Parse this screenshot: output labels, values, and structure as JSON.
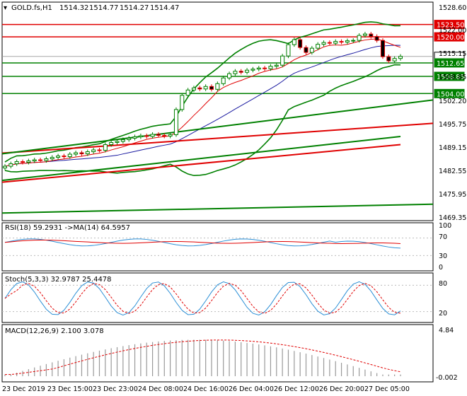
{
  "main_title": "GOLD.fs,H1",
  "ohlc": {
    "open": "1514.32",
    "high": "1514.77",
    "low": "1514.27",
    "close": "1514.47"
  },
  "price_axis": [
    "1528.60",
    "1522.00",
    "1515.15",
    "1508.85",
    "1502.20",
    "1495.75",
    "1489.15",
    "1482.55",
    "1475.95",
    "1469.35"
  ],
  "price_tags": {
    "resistance_1": {
      "label": "1523.50",
      "color": "#e00000"
    },
    "resistance_2": {
      "label": "1520.00",
      "color": "#e00000"
    },
    "current": {
      "label": "1514.47",
      "color": "#ffffff"
    },
    "support_1": {
      "label": "1512.65",
      "color": "#008000"
    },
    "support_2": {
      "label": "1508.85",
      "color": "#008000"
    },
    "support_3": {
      "label": "1504.00",
      "color": "#008000"
    }
  },
  "rsi": {
    "title": "RSI(18) 59.2931 ->MA(14) 64.5957",
    "axis": [
      "100",
      "70",
      "30",
      "0"
    ]
  },
  "stoch": {
    "title": "Stoch(5,3,3) 32.9787 25.4478",
    "axis": [
      "80",
      "20"
    ]
  },
  "macd": {
    "title": "MACD(12,26,9) 2.100 3.078",
    "axis": [
      "4.84",
      "-0.002"
    ]
  },
  "time_axis": [
    "23 Dec 2019",
    "23 Dec 15:00",
    "23 Dec 23:00",
    "24 Dec 08:00",
    "24 Dec 16:00",
    "26 Dec 04:00",
    "26 Dec 12:00",
    "26 Dec 20:00",
    "27 Dec 05:00"
  ],
  "colors": {
    "up": "#008000",
    "down": "#e00000",
    "rsi": "#2b8fd6",
    "signal": "#e00000",
    "grid": "#bbbbbb"
  },
  "chart_data": {
    "type": "candlestick",
    "symbol": "GOLD.fs",
    "timeframe": "H1",
    "close": [
      1483.5,
      1484.2,
      1484.8,
      1484.6,
      1485.0,
      1485.3,
      1485.1,
      1485.6,
      1486.0,
      1486.4,
      1486.2,
      1486.9,
      1487.3,
      1487.0,
      1487.6,
      1488.1,
      1488.0,
      1489.6,
      1490.2,
      1490.5,
      1491.0,
      1491.4,
      1491.8,
      1492.1,
      1491.9,
      1492.5,
      1492.2,
      1492.0,
      1492.4,
      1499.5,
      1503.5,
      1505.0,
      1505.6,
      1505.3,
      1506.0,
      1505.2,
      1506.8,
      1508.4,
      1509.6,
      1510.3,
      1510.0,
      1510.6,
      1510.9,
      1511.2,
      1511.0,
      1511.7,
      1512.0,
      1514.6,
      1517.8,
      1519.2,
      1517.0,
      1515.6,
      1516.8,
      1517.9,
      1518.4,
      1518.2,
      1518.7,
      1518.5,
      1518.9,
      1519.0,
      1520.4,
      1520.8,
      1520.1,
      1519.0,
      1514.4,
      1513.2,
      1513.9,
      1514.5
    ],
    "resistance_levels": [
      1523.5,
      1520.0
    ],
    "support_levels": [
      1512.65,
      1508.85,
      1504.0
    ],
    "indicators": {
      "rsi_18": 59.2931,
      "rsi_ma_14": 64.5957,
      "stoch_k": 32.9787,
      "stoch_d": 25.4478,
      "macd_main": 2.1,
      "macd_signal": 3.078
    }
  }
}
